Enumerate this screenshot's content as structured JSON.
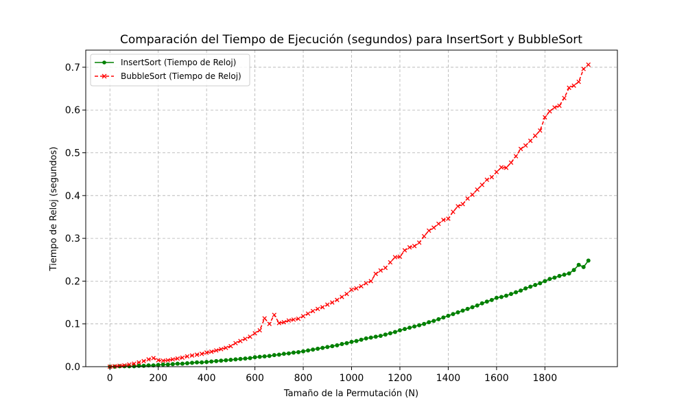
{
  "chart_data": {
    "type": "line",
    "title": "Comparación del Tiempo de Ejecución (segundos) para InsertSort y BubbleSort",
    "xlabel": "Tamaño de la Permutación (N)",
    "ylabel": "Tiempo de Reloj (segundos)",
    "xlim": [
      -100,
      2100
    ],
    "ylim": [
      0,
      0.74
    ],
    "xticks": [
      0,
      200,
      400,
      600,
      800,
      1000,
      1200,
      1400,
      1600,
      1800
    ],
    "yticks": [
      0.0,
      0.1,
      0.2,
      0.3,
      0.4,
      0.5,
      0.6,
      0.7
    ],
    "xtick_labels": [
      "0",
      "200",
      "400",
      "600",
      "800",
      "1000",
      "1200",
      "1400",
      "1600",
      "1800"
    ],
    "ytick_labels": [
      "0.0",
      "0.1",
      "0.2",
      "0.3",
      "0.4",
      "0.5",
      "0.6",
      "0.7"
    ],
    "grid": true,
    "legend_position": "top-left",
    "x": [
      0,
      20,
      40,
      60,
      80,
      100,
      120,
      140,
      160,
      180,
      200,
      220,
      240,
      260,
      280,
      300,
      320,
      340,
      360,
      380,
      400,
      420,
      440,
      460,
      480,
      500,
      520,
      540,
      560,
      580,
      600,
      620,
      640,
      660,
      680,
      700,
      720,
      740,
      760,
      780,
      800,
      820,
      840,
      860,
      880,
      900,
      920,
      940,
      960,
      980,
      1000,
      1020,
      1040,
      1060,
      1080,
      1100,
      1120,
      1140,
      1160,
      1180,
      1200,
      1220,
      1240,
      1260,
      1280,
      1300,
      1320,
      1340,
      1360,
      1380,
      1400,
      1420,
      1440,
      1460,
      1480,
      1500,
      1520,
      1540,
      1560,
      1580,
      1600,
      1620,
      1640,
      1660,
      1680,
      1700,
      1720,
      1740,
      1760,
      1780,
      1800,
      1820,
      1840,
      1860,
      1880,
      1900,
      1920,
      1940,
      1960,
      1980
    ],
    "series": [
      {
        "name": "InsertSort (Tiempo de Reloj)",
        "color": "#008000",
        "style": "solid",
        "marker": "circle",
        "values": [
          0.0,
          0.0,
          0.001,
          0.001,
          0.001,
          0.001,
          0.002,
          0.002,
          0.003,
          0.003,
          0.004,
          0.005,
          0.005,
          0.006,
          0.007,
          0.007,
          0.008,
          0.009,
          0.01,
          0.01,
          0.011,
          0.012,
          0.013,
          0.014,
          0.015,
          0.016,
          0.017,
          0.018,
          0.019,
          0.02,
          0.022,
          0.023,
          0.024,
          0.025,
          0.027,
          0.028,
          0.03,
          0.031,
          0.033,
          0.034,
          0.036,
          0.038,
          0.04,
          0.042,
          0.044,
          0.046,
          0.048,
          0.05,
          0.053,
          0.055,
          0.058,
          0.06,
          0.063,
          0.066,
          0.068,
          0.07,
          0.072,
          0.075,
          0.078,
          0.081,
          0.085,
          0.088,
          0.091,
          0.094,
          0.097,
          0.1,
          0.104,
          0.107,
          0.111,
          0.115,
          0.119,
          0.123,
          0.127,
          0.131,
          0.135,
          0.139,
          0.143,
          0.148,
          0.152,
          0.156,
          0.161,
          0.163,
          0.166,
          0.17,
          0.174,
          0.178,
          0.183,
          0.187,
          0.191,
          0.195,
          0.2,
          0.205,
          0.208,
          0.212,
          0.215,
          0.218,
          0.226,
          0.238,
          0.233,
          0.248
        ]
      },
      {
        "name": "BubbleSort (Tiempo de Reloj)",
        "color": "#ff0000",
        "style": "dashed",
        "marker": "x",
        "values": [
          0.0,
          0.001,
          0.002,
          0.003,
          0.005,
          0.007,
          0.01,
          0.013,
          0.017,
          0.02,
          0.015,
          0.014,
          0.015,
          0.017,
          0.019,
          0.021,
          0.024,
          0.026,
          0.028,
          0.03,
          0.033,
          0.035,
          0.038,
          0.041,
          0.044,
          0.048,
          0.055,
          0.06,
          0.065,
          0.07,
          0.078,
          0.085,
          0.113,
          0.1,
          0.121,
          0.102,
          0.104,
          0.108,
          0.11,
          0.112,
          0.118,
          0.124,
          0.13,
          0.135,
          0.139,
          0.145,
          0.15,
          0.156,
          0.163,
          0.17,
          0.18,
          0.183,
          0.188,
          0.195,
          0.2,
          0.217,
          0.225,
          0.231,
          0.244,
          0.256,
          0.257,
          0.272,
          0.279,
          0.282,
          0.29,
          0.305,
          0.318,
          0.325,
          0.334,
          0.343,
          0.346,
          0.362,
          0.375,
          0.38,
          0.393,
          0.402,
          0.414,
          0.425,
          0.437,
          0.443,
          0.455,
          0.466,
          0.465,
          0.477,
          0.492,
          0.509,
          0.517,
          0.528,
          0.54,
          0.552,
          0.583,
          0.597,
          0.606,
          0.61,
          0.628,
          0.652,
          0.657,
          0.666,
          0.696,
          0.706
        ]
      }
    ]
  }
}
